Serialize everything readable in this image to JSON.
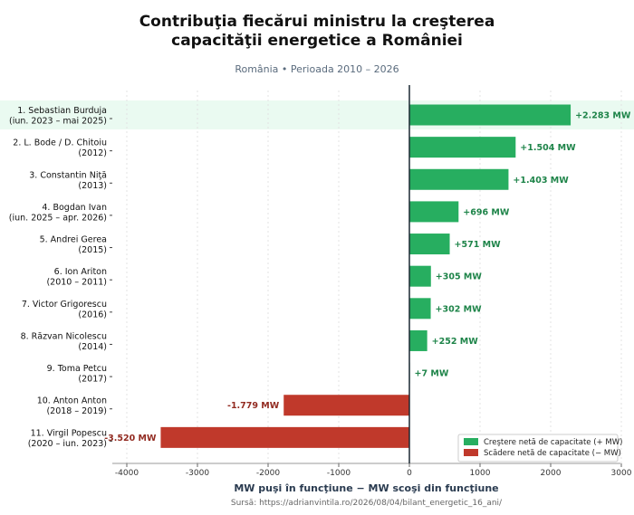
{
  "title_line1": "Contribuţia fiecărui ministru la creşterea",
  "title_line2": "capacităţii energetice a României",
  "subtitle": "România  •  Perioada 2010 – 2026",
  "source": "Sursă: https://adrianvintila.ro/2026/08/04/bilant_energetic_16_ani/",
  "colors": {
    "positive": "#27ae60",
    "negative": "#c0392b",
    "positive_label": "#1e8449",
    "negative_label": "#922b21",
    "highlight": "#eafaf1"
  },
  "chart_data": {
    "type": "bar",
    "orientation": "horizontal",
    "xlabel": "MW puşi în funcţiune  −  MW scoşi din funcţiune",
    "xlim": [
      -4200,
      3000
    ],
    "xticks": [
      -4000,
      -3000,
      -2000,
      -1000,
      0,
      1000,
      2000,
      3000
    ],
    "grid": true,
    "legend_position": "bottom-right",
    "legend": [
      {
        "label": "Creştere netă de capacitate (+ MW)",
        "color": "#27ae60"
      },
      {
        "label": "Scădere netă de capacitate (− MW)",
        "color": "#c0392b"
      }
    ],
    "categories": [
      {
        "line1": "1.  Sebastian Burduja",
        "line2": "(iun. 2023 – mai 2025)",
        "value": 2283,
        "label": "+2.283 MW"
      },
      {
        "line1": "2.  L. Bode / D. Chitoiu",
        "line2": "(2012)",
        "value": 1504,
        "label": "+1.504 MW"
      },
      {
        "line1": "3.  Constantin Niţă",
        "line2": "(2013)",
        "value": 1403,
        "label": "+1.403 MW"
      },
      {
        "line1": "4.  Bogdan Ivan",
        "line2": "(iun. 2025 – apr. 2026)",
        "value": 696,
        "label": "+696 MW"
      },
      {
        "line1": "5.  Andrei Gerea",
        "line2": "(2015)",
        "value": 571,
        "label": "+571 MW"
      },
      {
        "line1": "6.  Ion Ariton",
        "line2": "(2010 – 2011)",
        "value": 305,
        "label": "+305 MW"
      },
      {
        "line1": "7.  Victor Grigorescu",
        "line2": "(2016)",
        "value": 302,
        "label": "+302 MW"
      },
      {
        "line1": "8.  Răzvan Nicolescu",
        "line2": "(2014)",
        "value": 252,
        "label": "+252 MW"
      },
      {
        "line1": "9.  Toma Petcu",
        "line2": "(2017)",
        "value": 7,
        "label": "+7 MW"
      },
      {
        "line1": "10. Anton Anton",
        "line2": "(2018 – 2019)",
        "value": -1779,
        "label": "-1.779 MW"
      },
      {
        "line1": "11. Virgil Popescu",
        "line2": "(2020 – iun. 2023)",
        "value": -3520,
        "label": "-3.520 MW"
      }
    ]
  }
}
